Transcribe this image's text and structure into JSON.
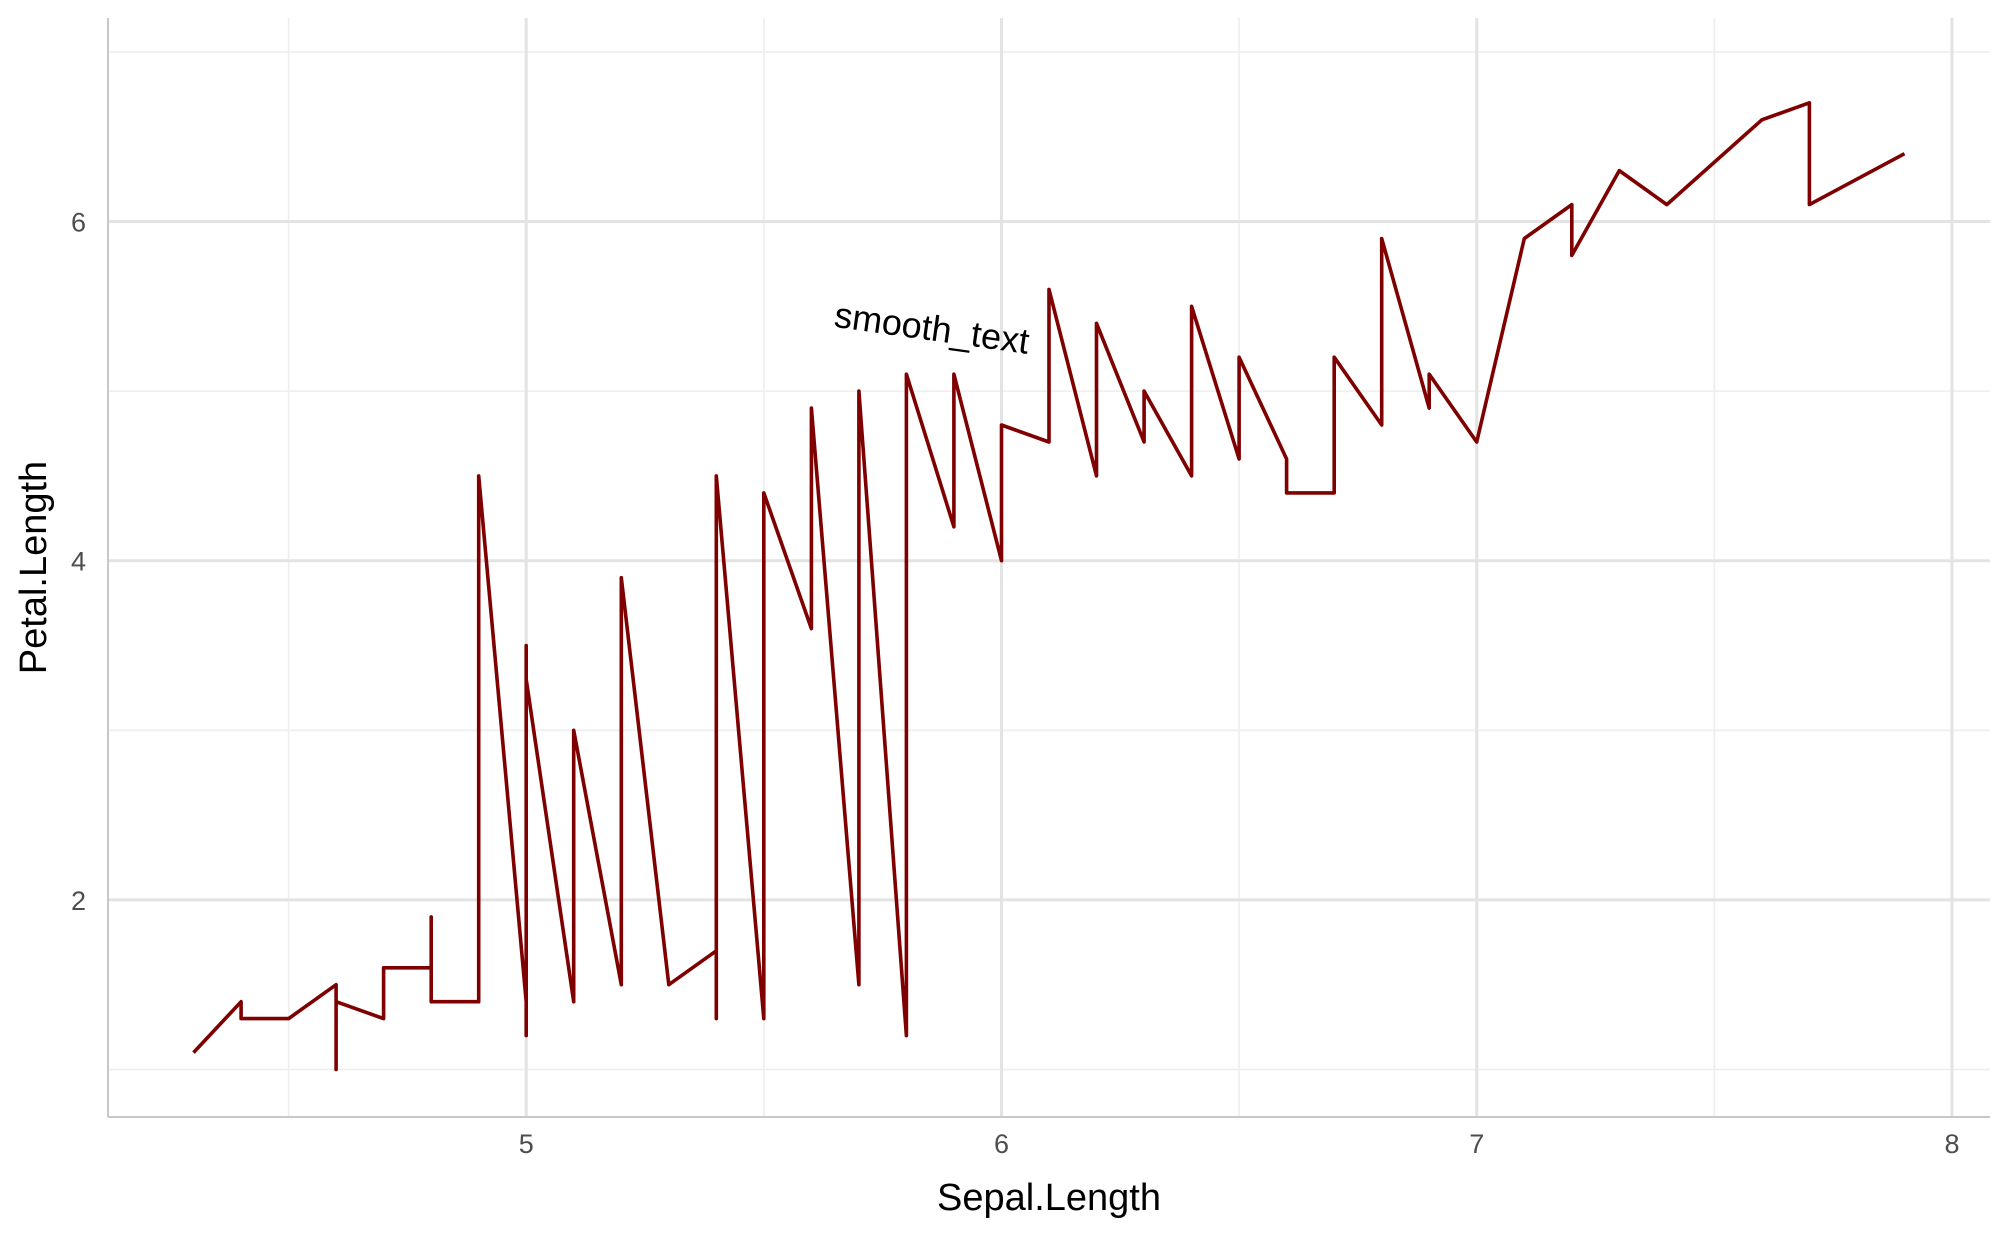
{
  "chart_data": {
    "type": "line",
    "xlabel": "Sepal.Length",
    "ylabel": "Petal.Length",
    "xlim": [
      4.12,
      8.08
    ],
    "ylim": [
      0.72,
      7.2
    ],
    "x_ticks": [
      5,
      6,
      7,
      8
    ],
    "y_ticks": [
      2,
      4,
      6
    ],
    "x_minor": [
      4.5,
      5.5,
      6.5,
      7.5
    ],
    "y_minor": [
      1,
      3,
      5,
      7
    ],
    "grid": true,
    "line_color": "#7f0000",
    "annotation": {
      "text": "smooth_text",
      "x": 5.85,
      "y": 5.3
    },
    "series": [
      {
        "x": [
          4.3,
          4.4,
          4.4,
          4.5,
          4.5,
          4.6,
          4.6,
          4.6,
          4.7,
          4.7,
          4.7,
          4.8,
          4.8,
          4.8,
          4.9,
          4.9,
          5.0,
          5.0,
          5.0,
          5.0,
          5.1,
          5.1,
          5.2,
          5.2,
          5.3,
          5.4,
          5.4,
          5.4,
          5.5,
          5.5,
          5.6,
          5.6,
          5.7,
          5.7,
          5.8,
          5.8,
          5.9,
          5.9,
          6.0,
          6.0,
          6.1,
          6.1,
          6.2,
          6.2,
          6.3,
          6.3,
          6.4,
          6.4,
          6.5,
          6.5,
          6.6,
          6.6,
          6.7,
          6.7,
          6.8,
          6.8,
          6.9,
          6.9,
          7.0,
          7.1,
          7.2,
          7.2,
          7.3,
          7.4,
          7.6,
          7.7,
          7.7,
          7.9
        ],
        "y": [
          1.1,
          1.4,
          1.3,
          1.3,
          1.3,
          1.5,
          1.0,
          1.4,
          1.3,
          1.6,
          1.6,
          1.6,
          1.9,
          1.4,
          1.4,
          4.5,
          1.4,
          1.2,
          3.5,
          3.3,
          1.4,
          3.0,
          1.5,
          3.9,
          1.5,
          1.7,
          1.3,
          4.5,
          1.3,
          4.4,
          3.6,
          4.9,
          1.5,
          5.0,
          1.2,
          5.1,
          4.2,
          5.1,
          4.0,
          4.8,
          4.7,
          5.6,
          4.5,
          5.4,
          4.7,
          5.0,
          4.5,
          5.5,
          4.6,
          5.2,
          4.6,
          4.4,
          4.4,
          5.2,
          4.8,
          5.9,
          4.9,
          5.1,
          4.7,
          5.9,
          6.1,
          5.8,
          6.3,
          6.1,
          6.6,
          6.7,
          6.1,
          6.4
        ]
      }
    ]
  }
}
